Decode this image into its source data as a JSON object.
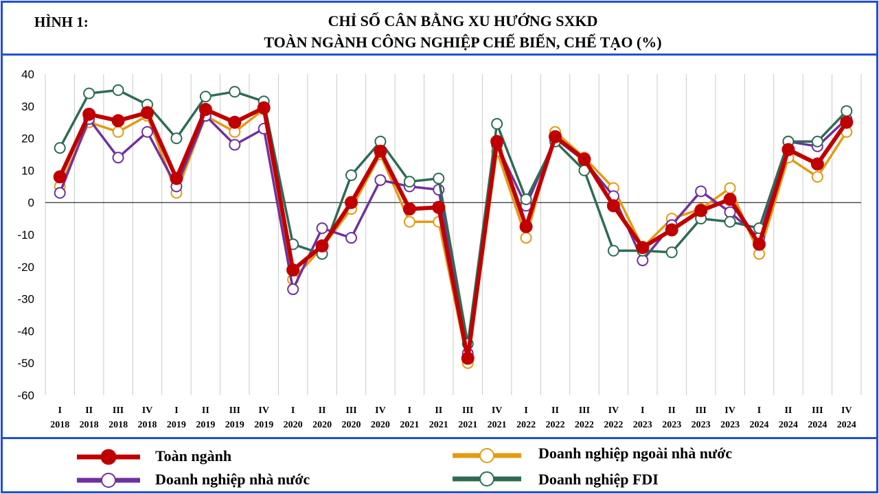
{
  "header": {
    "figure_label": "HÌNH 1:",
    "title_line1": "CHỈ SỐ CÂN BẰNG XU HƯỚNG SXKD",
    "title_line2": "TOÀN NGÀNH CÔNG NGHIỆP CHẾ BIẾN, CHẾ TẠO (%)"
  },
  "chart_data": {
    "type": "line",
    "title": "CHỈ SỐ CÂN BẰNG XU HƯỚNG SXKD TOÀN NGÀNH CÔNG NGHIỆP CHẾ BIẾN, CHẾ TẠO (%)",
    "xlabel": "",
    "ylabel": "",
    "ylim": [
      -60,
      40
    ],
    "yticks": [
      40,
      30,
      20,
      10,
      0,
      -10,
      -20,
      -30,
      -40,
      -50,
      -60
    ],
    "grid": "vertical",
    "legend_position": "bottom",
    "categories": [
      {
        "quarter": "I",
        "year": "2018"
      },
      {
        "quarter": "II",
        "year": "2018"
      },
      {
        "quarter": "III",
        "year": "2018"
      },
      {
        "quarter": "IV",
        "year": "2018"
      },
      {
        "quarter": "I",
        "year": "2019"
      },
      {
        "quarter": "II",
        "year": "2019"
      },
      {
        "quarter": "III",
        "year": "2019"
      },
      {
        "quarter": "IV",
        "year": "2019"
      },
      {
        "quarter": "I",
        "year": "2020"
      },
      {
        "quarter": "II",
        "year": "2020"
      },
      {
        "quarter": "III",
        "year": "2020"
      },
      {
        "quarter": "IV",
        "year": "2020"
      },
      {
        "quarter": "I",
        "year": "2021"
      },
      {
        "quarter": "II",
        "year": "2021"
      },
      {
        "quarter": "III",
        "year": "2021"
      },
      {
        "quarter": "IV",
        "year": "2021"
      },
      {
        "quarter": "I",
        "year": "2022"
      },
      {
        "quarter": "II",
        "year": "2022"
      },
      {
        "quarter": "III",
        "year": "2022"
      },
      {
        "quarter": "IV",
        "year": "2022"
      },
      {
        "quarter": "I",
        "year": "2023"
      },
      {
        "quarter": "II",
        "year": "2023"
      },
      {
        "quarter": "III",
        "year": "2023"
      },
      {
        "quarter": "IV",
        "year": "2023"
      },
      {
        "quarter": "I",
        "year": "2024"
      },
      {
        "quarter": "II",
        "year": "2024"
      },
      {
        "quarter": "III",
        "year": "2024"
      },
      {
        "quarter": "IV",
        "year": "2024"
      }
    ],
    "series": [
      {
        "name": "Doanh nghiệp ngoài nhà nước",
        "color": "#e39b12",
        "marker": "hollow-circle",
        "values": [
          5,
          25,
          22,
          27,
          3,
          27,
          22,
          29,
          -24,
          -14,
          -2,
          15,
          -6,
          -6,
          -50,
          16,
          -11,
          22,
          14,
          4.5,
          -14,
          -5,
          -2,
          4.5,
          -16,
          14,
          8,
          22
        ]
      },
      {
        "name": "Doanh nghiệp nhà nước",
        "color": "#7030a0",
        "marker": "hollow-circle",
        "values": [
          3,
          26,
          14,
          22,
          5,
          27,
          18,
          23,
          -27,
          -8,
          -11,
          7,
          5,
          4,
          -47,
          18,
          -1,
          20,
          13,
          2,
          -18,
          -7,
          3.5,
          -3,
          -11,
          19,
          17.5,
          26
        ]
      },
      {
        "name": "Doanh nghiệp FDI",
        "color": "#2e6b55",
        "marker": "hollow-circle",
        "values": [
          17,
          34,
          35,
          30.5,
          20,
          33,
          34.5,
          31.5,
          -13,
          -16,
          8.5,
          19,
          6.5,
          7.5,
          -44,
          24.5,
          1,
          19,
          10,
          -15,
          -15,
          -15.5,
          -5,
          -6,
          -8,
          19,
          19,
          28.5
        ]
      },
      {
        "name": "Toàn ngành",
        "color": "#c00000",
        "marker": "filled-circle",
        "values": [
          8,
          27.5,
          25.5,
          28,
          7.5,
          29,
          25,
          29.5,
          -21,
          -13.5,
          0,
          16,
          -2,
          -1.5,
          -48.5,
          19,
          -7.5,
          20.5,
          13.5,
          -1,
          -14,
          -8.5,
          -2.5,
          1,
          -13,
          16.5,
          12,
          25
        ]
      }
    ]
  }
}
